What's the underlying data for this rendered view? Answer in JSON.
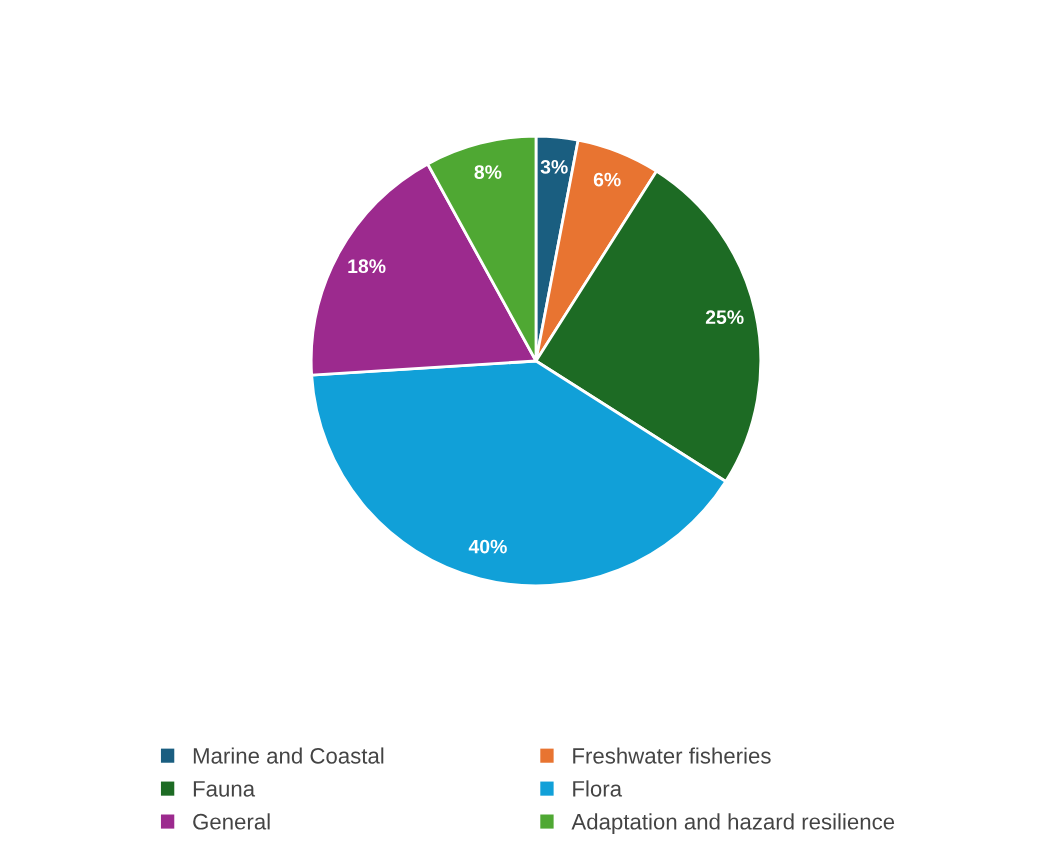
{
  "chart_data": {
    "type": "pie",
    "categories": [
      "Marine and Coastal",
      "Freshwater fisheries",
      "Fauna",
      "Flora",
      "General",
      "Adaptation and hazard resilience"
    ],
    "values": [
      3,
      6,
      25,
      40,
      18,
      8
    ],
    "value_labels": [
      "3%",
      "6%",
      "25%",
      "40%",
      "18%",
      "8%"
    ],
    "colors": [
      "#1a5e80",
      "#e87431",
      "#1d6b24",
      "#11a0d8",
      "#9c2a8e",
      "#4fa833"
    ],
    "legend": "bottom"
  }
}
